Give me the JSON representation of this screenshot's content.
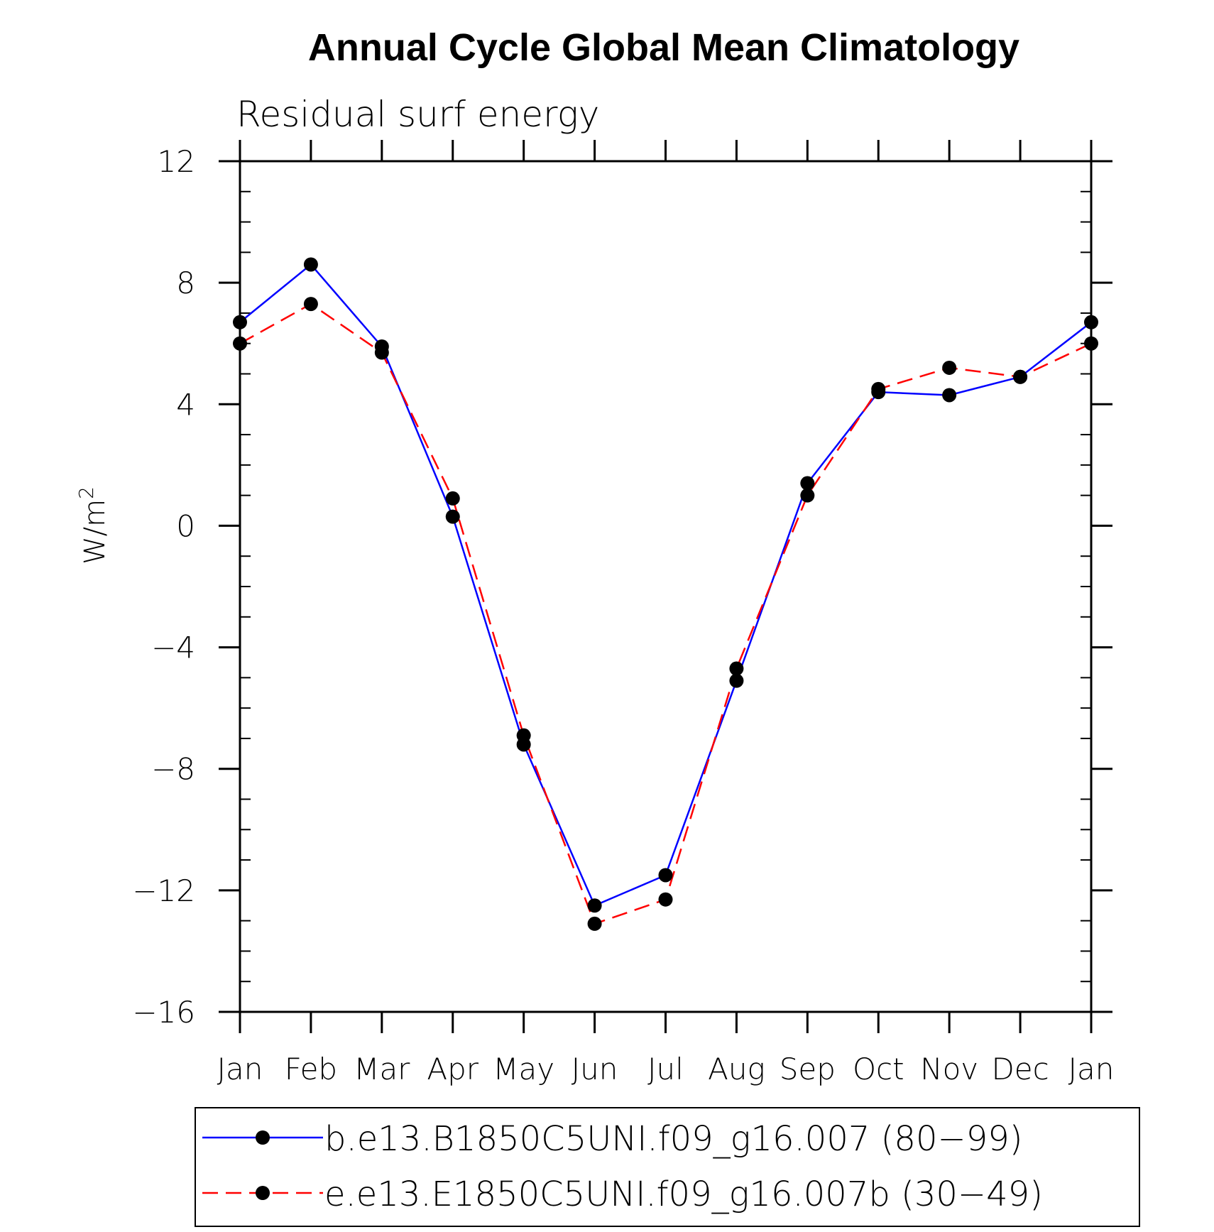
{
  "chart_data": {
    "type": "line",
    "title": "Annual Cycle Global Mean Climatology",
    "subtitle": "Residual surf energy",
    "ylabel": "W/m",
    "ylabel_superscript": "2",
    "xlabel": "",
    "categories": [
      "Jan",
      "Feb",
      "Mar",
      "Apr",
      "May",
      "Jun",
      "Jul",
      "Aug",
      "Sep",
      "Oct",
      "Nov",
      "Dec",
      "Jan"
    ],
    "ylim": [
      -16,
      12
    ],
    "yticks": [
      12,
      8,
      4,
      0,
      -4,
      -8,
      -12,
      -16
    ],
    "ytick_labels": [
      "12",
      "8",
      "4",
      "0",
      "−4",
      "−8",
      "−12",
      "−16"
    ],
    "grid": false,
    "legend_position": "bottom",
    "series": [
      {
        "name": "b.e13.B1850C5UNI.f09_g16.007 (80−99)",
        "color": "#0000ff",
        "style": "solid",
        "marker": "circle",
        "values": [
          6.7,
          8.6,
          5.9,
          0.3,
          -7.2,
          -12.5,
          -11.5,
          -5.1,
          1.4,
          4.4,
          4.3,
          4.9,
          6.7
        ]
      },
      {
        "name": "e.e13.E1850C5UNI.f09_g16.007b (30−49)",
        "color": "#ff0000",
        "style": "dashed",
        "marker": "circle",
        "values": [
          6.0,
          7.3,
          5.7,
          0.9,
          -6.9,
          -13.1,
          -12.3,
          -4.7,
          1.0,
          4.5,
          5.2,
          4.9,
          6.0
        ]
      }
    ]
  }
}
